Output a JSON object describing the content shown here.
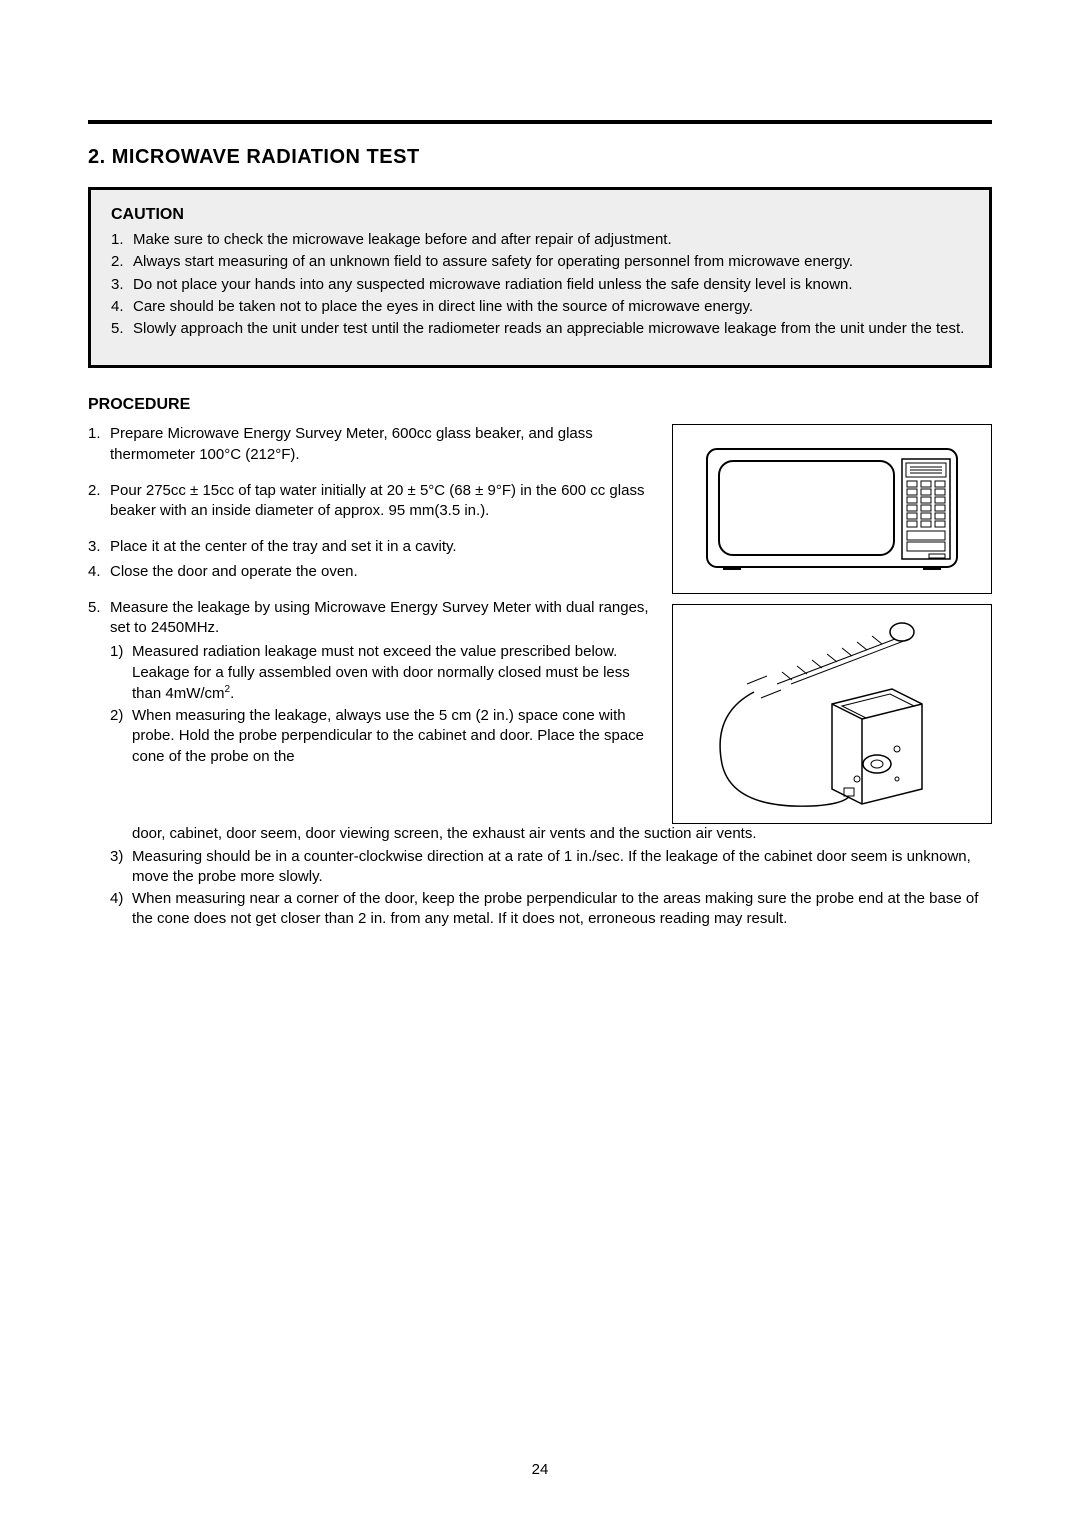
{
  "section_title": "2. MICROWAVE RADIATION TEST",
  "caution": {
    "title": "CAUTION",
    "items": [
      "Make sure to check the microwave leakage before and after repair of adjustment.",
      "Always start measuring of an unknown field to assure safety for operating personnel from microwave energy.",
      "Do not place your hands into any suspected microwave radiation field unless the safe density level is known.",
      "Care should be taken not to place the eyes in direct line with the source of microwave energy.",
      "Slowly approach the unit under test until the radiometer reads an appreciable microwave leakage from the unit under the test."
    ]
  },
  "procedure": {
    "title": "PROCEDURE",
    "items": [
      "Prepare Microwave Energy Survey Meter, 600cc glass beaker, and glass thermometer 100°C (212°F).",
      "Pour 275cc ± 15cc of tap water initially at 20 ± 5°C (68 ± 9°F) in the 600 cc glass beaker with an inside diameter of approx. 95 mm(3.5 in.).",
      "Place it at the center of the tray and set it in a cavity.",
      "Close the door and operate the oven.",
      "Measure the leakage by using Microwave Energy Survey Meter with dual ranges, set to 2450MHz."
    ],
    "sub_items_left": [
      "Measured radiation leakage must not exceed the value prescribed below. Leakage for a fully assembled oven with door normally closed must be less than 4mW/cm2.",
      "When measuring the leakage, always use the 5 cm (2 in.) space cone with probe. Hold the probe perpendicular to the cabinet and door. Place the space cone of the probe on the"
    ],
    "sub2_continuation": "door, cabinet, door seem, door viewing screen, the exhaust air vents and the suction air vents.",
    "sub_items_full": [
      "Measuring should be in a counter-clockwise direction at a rate of 1 in./sec. If the leakage of the cabinet door seem is unknown, move the probe more slowly.",
      "When measuring near a corner of the door, keep the probe perpendicular to the areas making sure the probe end at the base of the cone does not get closer than 2 in. from any metal. If it does not, erroneous reading may result."
    ]
  },
  "page_number": "24",
  "figure": {
    "microwave_stroke": "#000000",
    "meter_stroke": "#000000",
    "background": "#ffffff"
  }
}
